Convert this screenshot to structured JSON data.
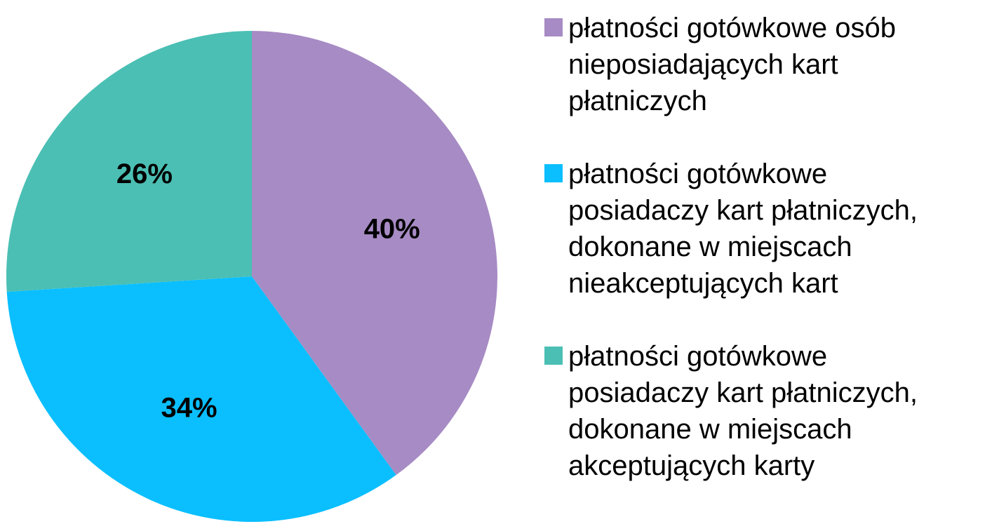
{
  "chart_data": {
    "type": "pie",
    "categories": [
      "płatności gotówkowe osób\nnieposiadających kart\npłatniczych",
      "płatności gotówkowe\nposiadaczy kart płatniczych,\ndokonane w miejscach\nnieakceptujących kart",
      "płatności gotówkowe\nposiadaczy kart płatniczych,\ndokonane w miejscach\nakceptujących karty"
    ],
    "values": [
      40,
      34,
      26
    ],
    "value_labels": [
      "40%",
      "34%",
      "26%"
    ],
    "colors": [
      "#a78bc4",
      "#0bbfff",
      "#4bbfb4"
    ],
    "legend": "right"
  }
}
